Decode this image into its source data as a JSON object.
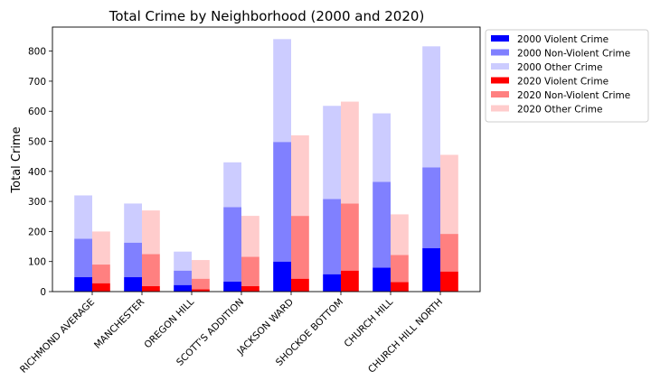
{
  "chart_data": {
    "type": "bar",
    "stacked": true,
    "grouped": true,
    "title": "Total Crime by Neighborhood (2000 and 2020)",
    "xlabel": "",
    "ylabel": "Total Crime",
    "ylim": [
      0,
      880
    ],
    "yticks": [
      0,
      100,
      200,
      300,
      400,
      500,
      600,
      700,
      800
    ],
    "grid": false,
    "legend_position": "outside-right",
    "categories": [
      "RICHMOND AVERAGE",
      "MANCHESTER",
      "OREGON HILL",
      "SCOTT'S ADDITION",
      "JACKSON WARD",
      "SHOCKOE BOTTOM",
      "CHURCH HILL",
      "CHURCH HILL NORTH"
    ],
    "groups": [
      {
        "year": "2000",
        "series": [
          {
            "name": "2000 Violent Crime",
            "color": "#0000ff",
            "values": [
              48,
              48,
              22,
              33,
              100,
              58,
              80,
              145
            ]
          },
          {
            "name": "2000 Non-Violent Crime",
            "color": "#8080ff",
            "values": [
              128,
              115,
              48,
              248,
              398,
              250,
              285,
              268
            ]
          },
          {
            "name": "2000 Other Crime",
            "color": "#ccccff",
            "values": [
              144,
              130,
              63,
              149,
              342,
              310,
              228,
              403
            ]
          }
        ]
      },
      {
        "year": "2020",
        "series": [
          {
            "name": "2020 Violent Crime",
            "color": "#ff0000",
            "values": [
              28,
              18,
              8,
              18,
              43,
              70,
              32,
              67
            ]
          },
          {
            "name": "2020 Non-Violent Crime",
            "color": "#ff8080",
            "values": [
              62,
              107,
              35,
              98,
              209,
              223,
              90,
              125
            ]
          },
          {
            "name": "2020 Other Crime",
            "color": "#ffcccc",
            "values": [
              110,
              145,
              62,
              136,
              268,
              339,
              135,
              263
            ]
          }
        ]
      }
    ]
  }
}
